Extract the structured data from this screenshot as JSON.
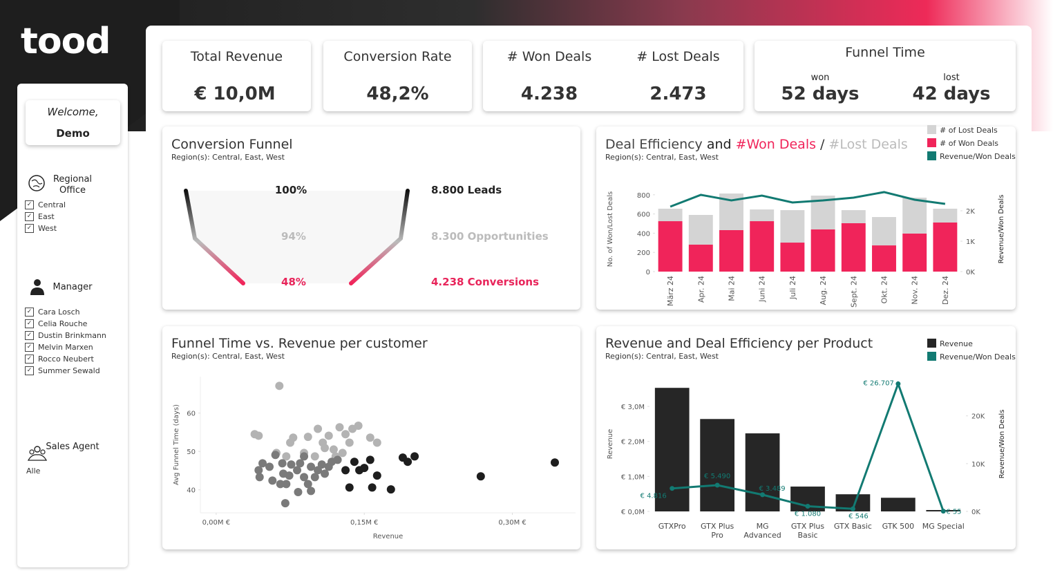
{
  "sidebar": {
    "logo": "tood",
    "welcome": "Welcome,",
    "user": "Demo",
    "filters": [
      {
        "title": "Regional Office",
        "options": [
          "Central",
          "East",
          "West"
        ]
      },
      {
        "title": "Manager",
        "options": [
          "Cara Losch",
          "Celia Rouche",
          "Dustin Brinkmann",
          "Melvin Marxen",
          "Rocco Neubert",
          "Summer Sewald"
        ]
      },
      {
        "title": "Sales Agent",
        "value": "Alle"
      }
    ]
  },
  "kpis": [
    {
      "label": "Total Revenue",
      "value": "€ 10,0M"
    },
    {
      "label": "Conversion Rate",
      "value": "48,2%"
    },
    {
      "label": "# Won Deals",
      "value": "4.238"
    },
    {
      "label": "# Lost Deals",
      "value": "2.473"
    }
  ],
  "funnel_time": {
    "title": "Funnel Time",
    "items": [
      {
        "label": "won",
        "value": "52 days"
      },
      {
        "label": "lost",
        "value": "42 days"
      }
    ]
  },
  "funnel": {
    "title": "Conversion Funnel",
    "subtitle": "Region(s): Central, East, West",
    "stages": [
      {
        "share": "100%",
        "label": "8.800 Leads"
      },
      {
        "share": "94%",
        "label": "8.300 Opportunities"
      },
      {
        "share": "48%",
        "label": "4.238 Conversions"
      }
    ]
  },
  "chart_data": [
    {
      "type": "bar",
      "stacked": true,
      "title": [
        "Deal Efficiency",
        "and",
        "#Won Deals",
        "/",
        "#Lost Deals"
      ],
      "title_colors": [
        "#444444",
        "#222222",
        "#f0245a",
        "#333333",
        "#bbbbbb"
      ],
      "subtitle": "Region(s): Central, East, West",
      "categories": [
        "März 24",
        "Apr. 24",
        "Mai 24",
        "Juni 24",
        "Juli 24",
        "Aug. 24",
        "Sept. 24",
        "Okt. 24",
        "Nov. 24",
        "Dez. 24"
      ],
      "series": [
        {
          "name": "# of Lost Deals",
          "color": "#d4d4d4",
          "values": [
            130,
            309,
            381,
            122,
            338,
            352,
            136,
            295,
            374,
            144
          ]
        },
        {
          "name": "# of Won Deals",
          "color": "#f0245a",
          "values": [
            525,
            281,
            432,
            525,
            302,
            439,
            504,
            273,
            396,
            511
          ]
        },
        {
          "name": "Revenue/Won Deals",
          "color": "#127a72",
          "type": "line",
          "axis": "y2",
          "values": [
            2136,
            2523,
            2341,
            2500,
            2273,
            2341,
            2432,
            2614,
            2364,
            2227
          ]
        }
      ],
      "ylabel": "No. of Won/Lost Deals",
      "y2label": "Revenue/Won Deals",
      "ylim": [
        0,
        885
      ],
      "yticks": [
        0,
        200,
        400,
        600,
        800
      ],
      "y2lim": [
        0,
        2795
      ],
      "y2ticks": [
        {
          "value": 0,
          "label": "0K"
        },
        {
          "value": 1000,
          "label": "1K"
        },
        {
          "value": 2000,
          "label": "2K"
        }
      ],
      "legend": "top-right"
    },
    {
      "type": "scatter",
      "title": "Funnel Time vs. Revenue per customer",
      "subtitle": "Region(s): Central, East, West",
      "xlabel": "Revenue",
      "ylabel": "Avg Funnel Time (days)",
      "xlim": [
        -0.016,
        0.364
      ],
      "ylim": [
        34,
        69.5
      ],
      "xticks": [
        {
          "value": 0,
          "label": "0,00M €"
        },
        {
          "value": 0.15,
          "label": "0,15M €"
        },
        {
          "value": 0.3,
          "label": "0,30M €"
        }
      ],
      "yticks": [
        40,
        50,
        60
      ],
      "series": [
        {
          "color": "#b3b3b3",
          "x": [
            0.064,
            0.039,
            0.043,
            0.075,
            0.078,
            0.093,
            0.103,
            0.108,
            0.114,
            0.125,
            0.131,
            0.138,
            0.144,
            0.156,
            0.163,
            0.135,
            0.119,
            0.11,
            0.1,
            0.089,
            0.128,
            0.121,
            0.071,
            0.061
          ],
          "values": [
            67.1,
            54.5,
            54.1,
            52.3,
            53.6,
            53.8,
            55.9,
            52.3,
            54.1,
            56.3,
            54.5,
            55.9,
            56.7,
            53.6,
            52.3,
            52.3,
            50.5,
            50.9,
            48.7,
            49.6,
            49.6,
            48.7,
            48.7,
            49.6
          ]
        },
        {
          "color": "#7a7a7a",
          "x": [
            0.06,
            0.047,
            0.043,
            0.044,
            0.054,
            0.067,
            0.068,
            0.074,
            0.076,
            0.082,
            0.085,
            0.089,
            0.093,
            0.083,
            0.096,
            0.1,
            0.103,
            0.107,
            0.11,
            0.114,
            0.117,
            0.123,
            0.096,
            0.071,
            0.065,
            0.07,
            0.089,
            0.057
          ],
          "values": [
            49.1,
            46.9,
            45.1,
            43.3,
            46.0,
            46.9,
            44.2,
            43.7,
            46.6,
            45.1,
            46.9,
            43.3,
            41.5,
            39.4,
            39.7,
            43.3,
            45.1,
            46.6,
            44.2,
            46.0,
            47.3,
            47.8,
            46.0,
            41.5,
            41.5,
            36.5,
            48.7,
            42.4
          ]
        },
        {
          "color": "#1e1e1e",
          "x": [
            0.14,
            0.145,
            0.15,
            0.156,
            0.163,
            0.135,
            0.158,
            0.177,
            0.189,
            0.194,
            0.201,
            0.268,
            0.343,
            0.131
          ],
          "values": [
            47.3,
            45.1,
            45.7,
            47.8,
            43.7,
            40.6,
            40.6,
            40.1,
            48.4,
            47.3,
            48.7,
            43.5,
            47.1,
            45.1
          ]
        }
      ]
    },
    {
      "type": "bar",
      "title": "Revenue and Deal Efficiency per Product",
      "subtitle": "Region(s): Central, East, West",
      "categories": [
        "GTXPro",
        "GTX Plus Pro",
        "MG Advanced",
        "GTX Plus Basic",
        "GTX Basic",
        "GTK 500",
        "MG Special"
      ],
      "series": [
        {
          "name": "Revenue",
          "color": "#262626",
          "values": [
            3.53,
            2.64,
            2.23,
            0.71,
            0.49,
            0.39,
            0.04
          ]
        },
        {
          "name": "Revenue/Won Deals",
          "color": "#127a72",
          "type": "line",
          "axis": "y2",
          "markers": true,
          "values": [
            4816,
            5490,
            3489,
            1080,
            546,
            26707,
            55
          ],
          "value_labels": [
            "€ 4.816",
            "€ 5.490",
            "€ 3.489",
            "€ 1.080",
            "€ 546",
            "€ 26.707",
            "€ 55"
          ]
        }
      ],
      "ylabel": "Revenue",
      "y2label": "Revenue/Won Deals",
      "ylim": [
        0,
        3.85
      ],
      "yticks": [
        {
          "value": 0,
          "label": "€ 0,0M"
        },
        {
          "value": 1,
          "label": "€ 1,0M"
        },
        {
          "value": 2,
          "label": "€ 2,0M"
        },
        {
          "value": 3,
          "label": "€ 3,0M"
        }
      ],
      "y2lim": [
        0,
        28200
      ],
      "y2ticks": [
        {
          "value": 0,
          "label": "0K"
        },
        {
          "value": 10000,
          "label": "10K"
        },
        {
          "value": 20000,
          "label": "20K"
        }
      ],
      "legend": "top-right"
    }
  ]
}
